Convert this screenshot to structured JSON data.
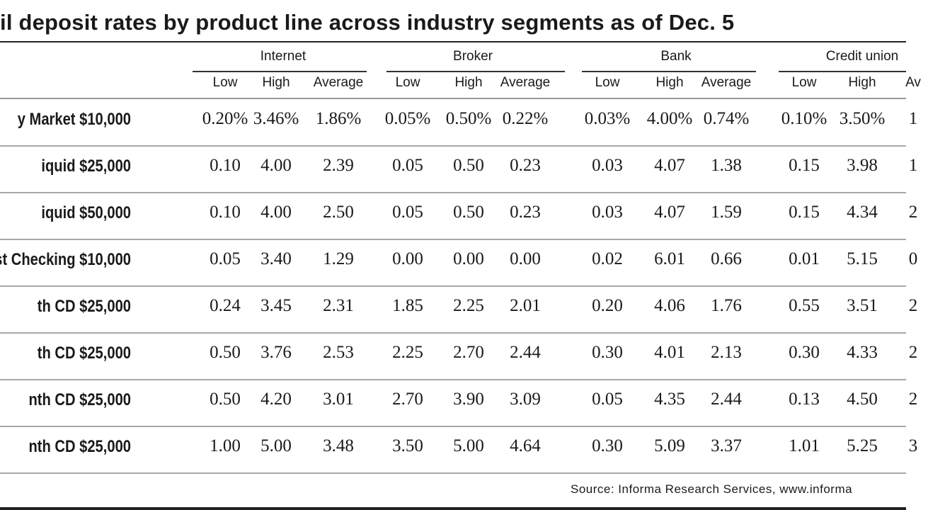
{
  "chart_data": {
    "type": "table",
    "title": "il deposit rates by product line across industry segments as of Dec. 5",
    "groups": [
      "Internet",
      "Broker",
      "Bank",
      "Credit union"
    ],
    "subcolumns": [
      "Low",
      "High",
      "Average",
      "Low",
      "High",
      "Average",
      "Low",
      "High",
      "Average",
      "Low",
      "High",
      "Av"
    ],
    "rows": [
      {
        "label": "y Market $10,000",
        "values": [
          "0.20%",
          "3.46%",
          "1.86%",
          "0.05%",
          "0.50%",
          "0.22%",
          "0.03%",
          "4.00%",
          "0.74%",
          "0.10%",
          "3.50%",
          "1"
        ]
      },
      {
        "label": "iquid $25,000",
        "values": [
          "0.10",
          "4.00",
          "2.39",
          "0.05",
          "0.50",
          "0.23",
          "0.03",
          "4.07",
          "1.38",
          "0.15",
          "3.98",
          "1"
        ]
      },
      {
        "label": "iquid $50,000",
        "values": [
          "0.10",
          "4.00",
          "2.50",
          "0.05",
          "0.50",
          "0.23",
          "0.03",
          "4.07",
          "1.59",
          "0.15",
          "4.34",
          "2"
        ]
      },
      {
        "label": "st Checking $10,000",
        "values": [
          "0.05",
          "3.40",
          "1.29",
          "0.00",
          "0.00",
          "0.00",
          "0.02",
          "6.01",
          "0.66",
          "0.01",
          "5.15",
          "0"
        ]
      },
      {
        "label": "th CD $25,000",
        "values": [
          "0.24",
          "3.45",
          "2.31",
          "1.85",
          "2.25",
          "2.01",
          "0.20",
          "4.06",
          "1.76",
          "0.55",
          "3.51",
          "2"
        ]
      },
      {
        "label": "th CD $25,000",
        "values": [
          "0.50",
          "3.76",
          "2.53",
          "2.25",
          "2.70",
          "2.44",
          "0.30",
          "4.01",
          "2.13",
          "0.30",
          "4.33",
          "2"
        ]
      },
      {
        "label": "nth CD $25,000",
        "values": [
          "0.50",
          "4.20",
          "3.01",
          "2.70",
          "3.90",
          "3.09",
          "0.05",
          "4.35",
          "2.44",
          "0.13",
          "4.50",
          "2"
        ]
      },
      {
        "label": "nth CD $25,000",
        "values": [
          "1.00",
          "5.00",
          "3.48",
          "3.50",
          "5.00",
          "4.64",
          "0.30",
          "5.09",
          "3.37",
          "1.01",
          "5.25",
          "3"
        ]
      }
    ],
    "source": "Source: Informa Research Services, www.informa"
  }
}
